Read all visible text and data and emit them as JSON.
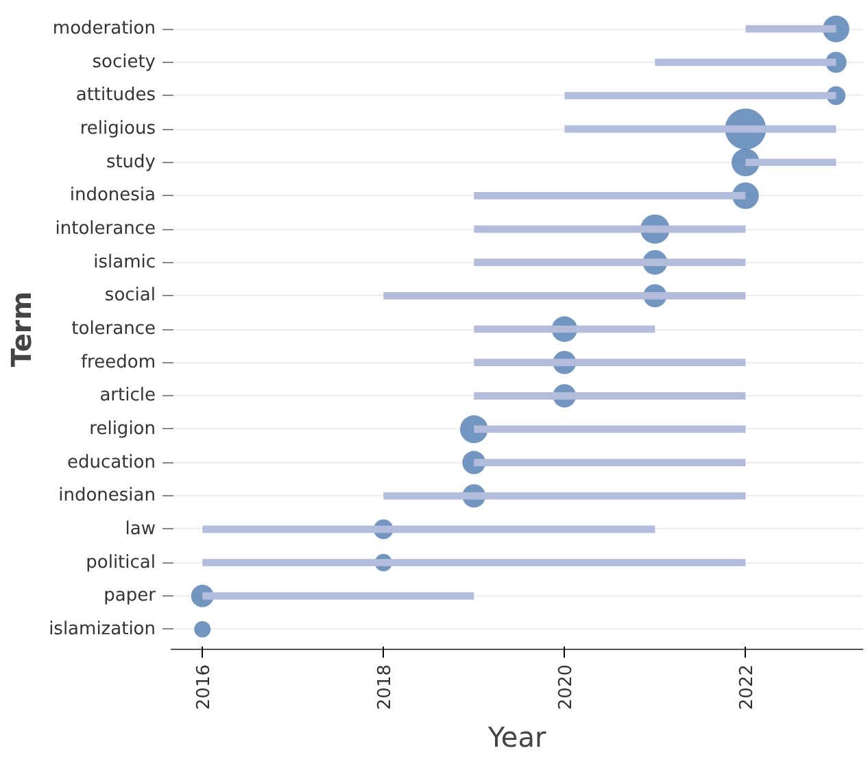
{
  "chart_data": {
    "type": "bar",
    "orientation": "horizontal",
    "xlabel": "Year",
    "ylabel": "Term",
    "categories": [
      "moderation",
      "society",
      "attitudes",
      "religious",
      "study",
      "indonesia",
      "intolerance",
      "islamic",
      "social",
      "tolerance",
      "freedom",
      "article",
      "religion",
      "education",
      "indonesian",
      "law",
      "political",
      "paper",
      "islamization"
    ],
    "series": [
      {
        "color": "#b4bcdc",
        "base": [
          2022,
          2021,
          2020,
          2020,
          2022,
          2019,
          2019,
          2019,
          2018,
          2019,
          2019,
          2019,
          2019,
          2019,
          2018,
          2016,
          2016,
          2016,
          null
        ],
        "values": [
          1,
          2,
          3,
          3,
          1,
          3,
          3,
          3,
          4,
          2,
          3,
          3,
          3,
          3,
          4,
          5,
          6,
          3,
          null
        ]
      },
      {
        "type": "bubble",
        "color": "#5b84b5",
        "values": [
          2023,
          2023,
          2023,
          2022,
          2022,
          2022,
          2021,
          2021,
          2021,
          2020,
          2020,
          2020,
          2019,
          2019,
          2019,
          2018,
          2018,
          2016,
          2016
        ],
        "sizes": [
          0.42,
          0.26,
          0.21,
          1,
          0.46,
          0.42,
          0.51,
          0.36,
          0.32,
          0.39,
          0.32,
          0.32,
          0.46,
          0.32,
          0.32,
          0.23,
          0.18,
          0.3,
          0.16
        ]
      }
    ],
    "xlim": [
      2015.65,
      2023.3
    ],
    "xticks": [
      2016,
      2018,
      2020,
      2022
    ],
    "grid": "y"
  }
}
